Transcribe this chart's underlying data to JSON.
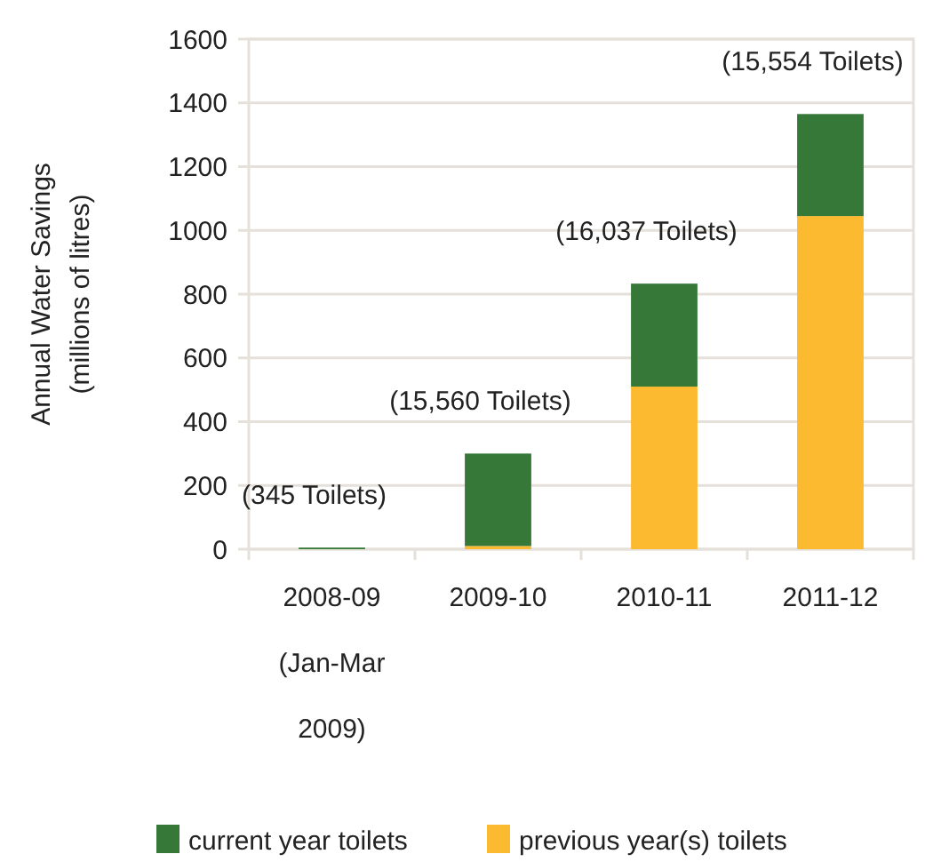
{
  "chart_data": {
    "type": "bar",
    "stacked": true,
    "ylabel": "Annual Water Savings (millions of litres)",
    "categories": [
      "2008-09 (Jan-Mar 2009)",
      "2009-10",
      "2010-11",
      "2011-12"
    ],
    "series": [
      {
        "name": "previous year(s) toilets",
        "color": "#fbba2f",
        "values": [
          0,
          10,
          510,
          1045
        ]
      },
      {
        "name": "current year toilets",
        "color": "#357838",
        "values": [
          5,
          290,
          323,
          320
        ]
      }
    ],
    "ylim": [
      0,
      1600
    ],
    "yticks": [
      0,
      200,
      400,
      600,
      800,
      1000,
      1200,
      1400,
      1600
    ],
    "grid": "y",
    "legend": "bottom",
    "annotations": [
      "(345 Toilets)",
      "(15,560 Toilets)",
      "(16,037 Toilets)",
      "(15,554 Toilets)"
    ]
  }
}
